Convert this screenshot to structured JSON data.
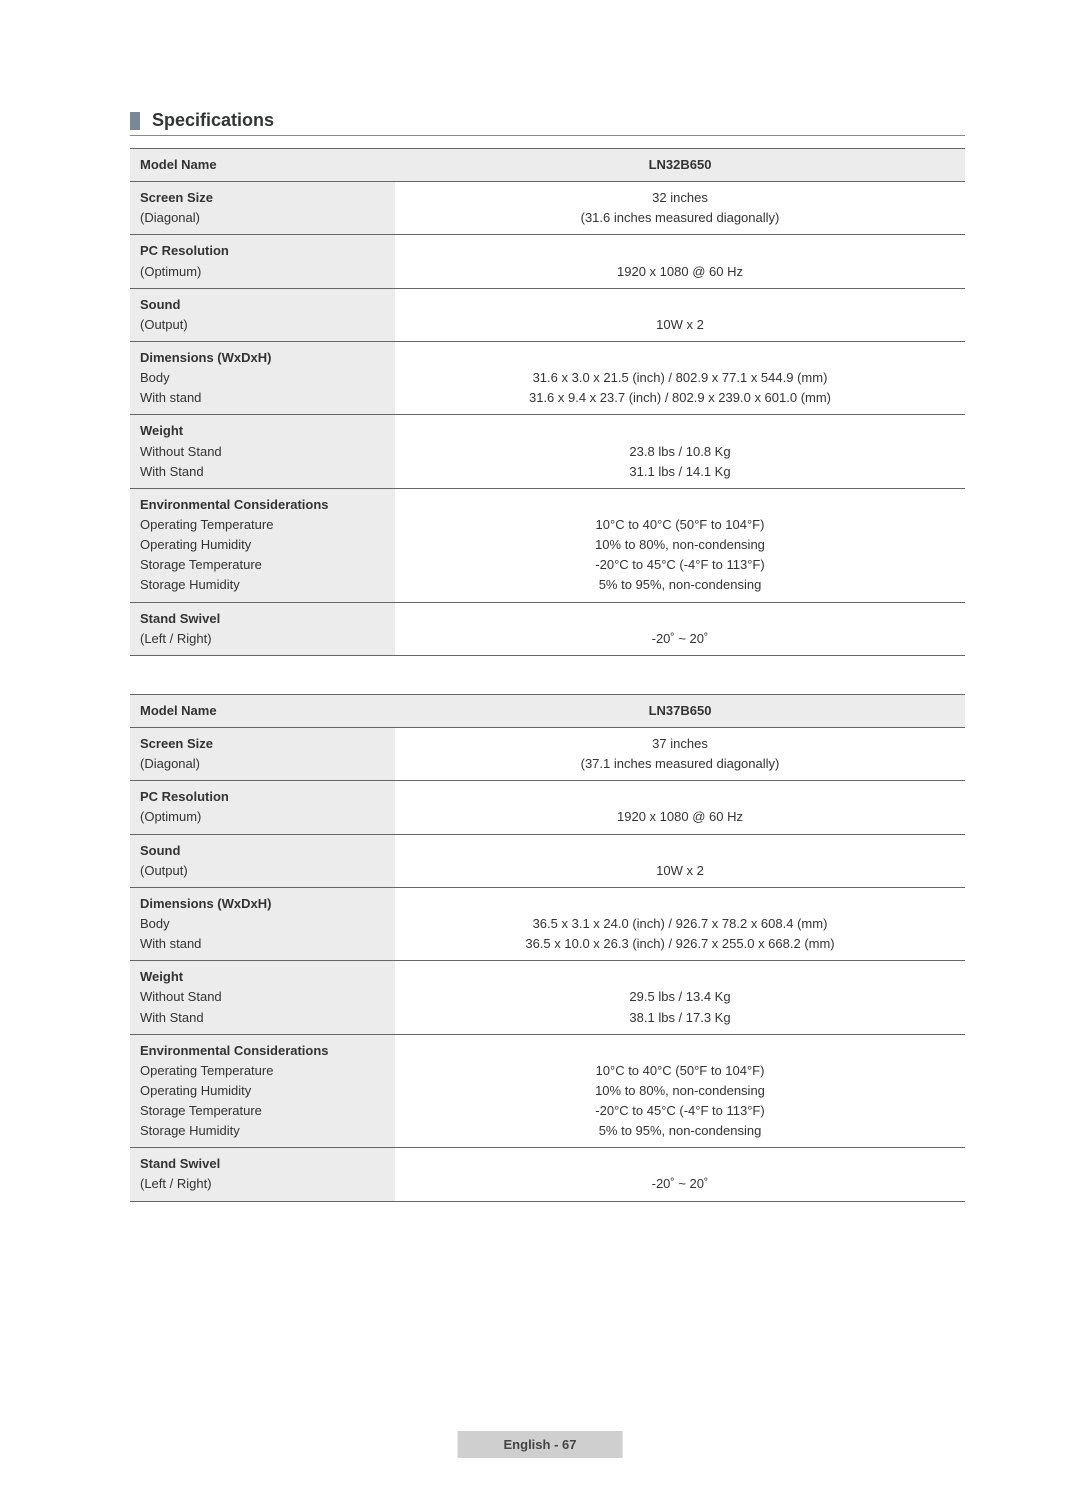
{
  "section_title": "Specifications",
  "footer": "English - 67",
  "tables": [
    {
      "model_name_label": "Model Name",
      "model_name_value": "LN32B650",
      "rows": [
        {
          "label_bold": "Screen Size",
          "label_lines": [
            "(Diagonal)"
          ],
          "value_lines": [
            "32 inches",
            "(31.6 inches measured diagonally)"
          ]
        },
        {
          "label_bold": "PC Resolution",
          "label_lines": [
            "(Optimum)"
          ],
          "value_lines": [
            "",
            "1920 x 1080 @ 60 Hz"
          ]
        },
        {
          "label_bold": "Sound",
          "label_lines": [
            "(Output)"
          ],
          "value_lines": [
            "",
            "10W x 2"
          ]
        },
        {
          "label_bold": "Dimensions (WxDxH)",
          "label_lines": [
            "Body",
            "With stand"
          ],
          "value_lines": [
            "",
            "31.6 x 3.0 x 21.5 (inch) / 802.9 x 77.1 x 544.9 (mm)",
            "31.6 x 9.4 x 23.7 (inch) / 802.9 x 239.0 x 601.0 (mm)"
          ]
        },
        {
          "label_bold": "Weight",
          "label_lines": [
            "Without Stand",
            "With Stand"
          ],
          "value_lines": [
            "",
            "23.8 lbs / 10.8 Kg",
            "31.1 lbs / 14.1 Kg"
          ]
        },
        {
          "label_bold": "Environmental Considerations",
          "label_lines": [
            "Operating Temperature",
            "Operating Humidity",
            "Storage Temperature",
            "Storage Humidity"
          ],
          "value_lines": [
            "",
            "10°C to 40°C (50°F to 104°F)",
            "10% to 80%, non-condensing",
            "-20°C to 45°C (-4°F to 113°F)",
            "5% to 95%, non-condensing"
          ]
        },
        {
          "label_bold": "Stand Swivel",
          "label_lines": [
            "(Left / Right)"
          ],
          "value_lines": [
            "",
            "-20˚ ~ 20˚"
          ]
        }
      ]
    },
    {
      "model_name_label": "Model Name",
      "model_name_value": "LN37B650",
      "rows": [
        {
          "label_bold": "Screen Size",
          "label_lines": [
            "(Diagonal)"
          ],
          "value_lines": [
            "37 inches",
            "(37.1 inches measured diagonally)"
          ]
        },
        {
          "label_bold": "PC Resolution",
          "label_lines": [
            "(Optimum)"
          ],
          "value_lines": [
            "",
            "1920 x 1080 @ 60 Hz"
          ]
        },
        {
          "label_bold": "Sound",
          "label_lines": [
            "(Output)"
          ],
          "value_lines": [
            "",
            "10W x 2"
          ]
        },
        {
          "label_bold": "Dimensions (WxDxH)",
          "label_lines": [
            "Body",
            "With stand"
          ],
          "value_lines": [
            "",
            "36.5 x 3.1 x 24.0 (inch) / 926.7 x 78.2 x 608.4 (mm)",
            "36.5 x 10.0 x 26.3 (inch) / 926.7 x 255.0 x 668.2 (mm)"
          ]
        },
        {
          "label_bold": "Weight",
          "label_lines": [
            "Without Stand",
            "With Stand"
          ],
          "value_lines": [
            "",
            "29.5 lbs / 13.4 Kg",
            "38.1 lbs / 17.3 Kg"
          ]
        },
        {
          "label_bold": "Environmental Considerations",
          "label_lines": [
            "Operating Temperature",
            "Operating Humidity",
            "Storage Temperature",
            "Storage Humidity"
          ],
          "value_lines": [
            "",
            "10°C to 40°C (50°F to 104°F)",
            "10% to 80%, non-condensing",
            "-20°C to 45°C (-4°F to 113°F)",
            "5% to 95%, non-condensing"
          ]
        },
        {
          "label_bold": "Stand Swivel",
          "label_lines": [
            "(Left / Right)"
          ],
          "value_lines": [
            "",
            "-20˚ ~ 20˚"
          ]
        }
      ]
    }
  ]
}
